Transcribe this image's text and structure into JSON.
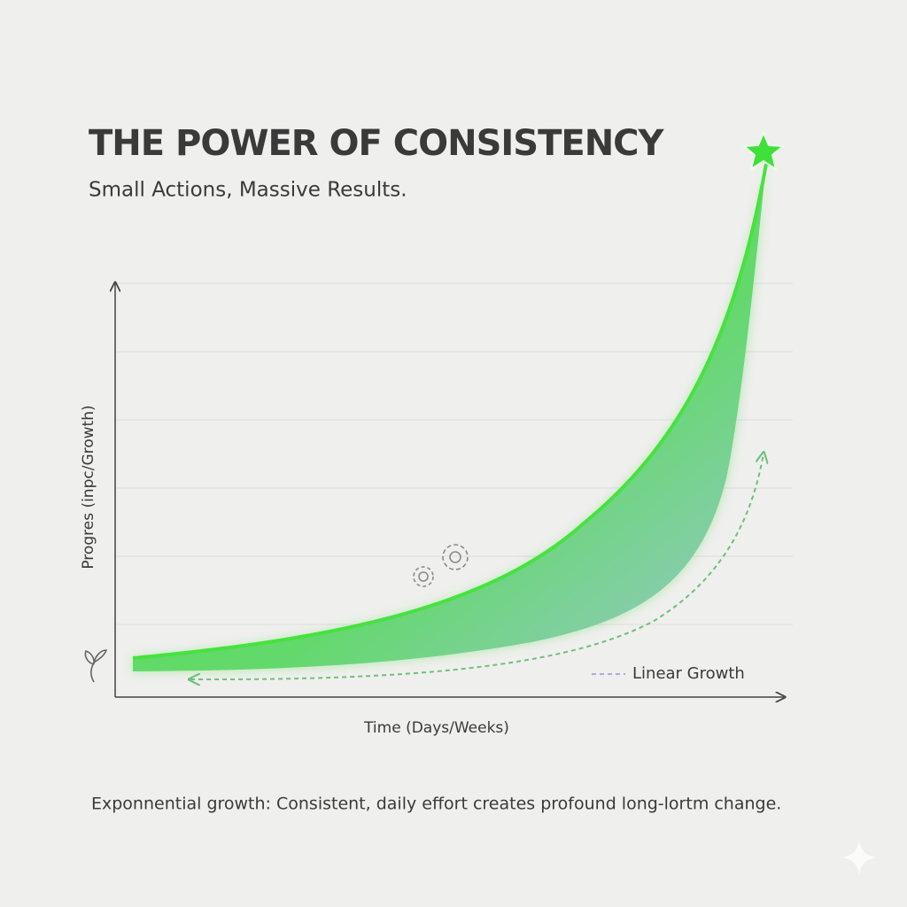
{
  "header": {
    "title": "THE POWER OF CONSISTENCY",
    "subtitle": "Small Actions, Massive Results."
  },
  "chart": {
    "y_axis_label": "Progres (inpc/Growth)",
    "x_axis_label": "Time (Days/Weeks)",
    "legend_label": "Linear Growth"
  },
  "caption": "Exponnential growth: Consistent, daily effort creates profound long-lortm change."
}
